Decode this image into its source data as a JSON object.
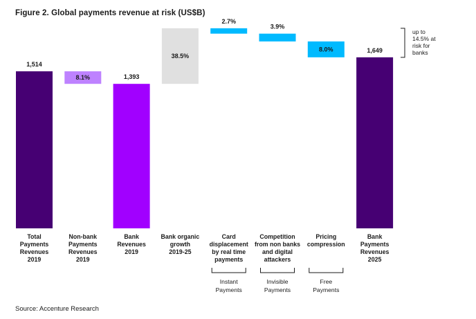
{
  "title": "Figure 2. Global payments revenue at risk (US$B)",
  "source": "Source: Accenture Research",
  "chart_data": {
    "type": "bar",
    "subtype": "waterfall",
    "categories": [
      "Total Payments Revenues 2019",
      "Non-bank Payments Revenues 2019",
      "Bank Revenues 2019",
      "Bank organic growth 2019-25",
      "Card displacement by real time payments",
      "Competition from non banks and digital attackers",
      "Pricing compression",
      "Bank Payments Revenues 2025"
    ],
    "category_lines": [
      [
        "Total",
        "Payments",
        "Revenues",
        "2019"
      ],
      [
        "Non-bank",
        "Payments",
        "Revenues",
        "2019"
      ],
      [
        "Bank",
        "Revenues",
        "2019"
      ],
      [
        "Bank organic",
        "growth",
        "2019-25"
      ],
      [
        "Card",
        "displacement",
        "by real time",
        "payments"
      ],
      [
        "Competition",
        "from non banks",
        "and digital",
        "attackers"
      ],
      [
        "Pricing",
        "compression"
      ],
      [
        "Bank",
        "Payments",
        "Revenues",
        "2025"
      ]
    ],
    "bars": [
      {
        "kind": "total",
        "start": 0,
        "end": 1514,
        "label": "1,514",
        "color": "#460073"
      },
      {
        "kind": "decrease",
        "start": 1393,
        "end": 1514,
        "label": "8.1%",
        "color": "#be82ff"
      },
      {
        "kind": "total",
        "start": 0,
        "end": 1393,
        "label": "1,393",
        "color": "#a100ff"
      },
      {
        "kind": "increase",
        "start": 1393,
        "end": 1929,
        "label": "38.5%",
        "color": "#e0e0e0"
      },
      {
        "kind": "decrease",
        "start": 1877,
        "end": 1929,
        "label": "2.7%",
        "color": "#00baff"
      },
      {
        "kind": "decrease",
        "start": 1802,
        "end": 1877,
        "label": "3.9%",
        "color": "#00baff"
      },
      {
        "kind": "decrease",
        "start": 1649,
        "end": 1802,
        "label": "8.0%",
        "color": "#00baff"
      },
      {
        "kind": "total",
        "start": 0,
        "end": 1649,
        "label": "1,649",
        "color": "#460073"
      }
    ],
    "ylim": [
      0,
      2000
    ],
    "grid": false,
    "brackets": [
      {
        "label_lines": [
          "Instant",
          "Payments"
        ],
        "index": 4
      },
      {
        "label_lines": [
          "Invisible",
          "Payments"
        ],
        "index": 5
      },
      {
        "label_lines": [
          "Free",
          "Payments"
        ],
        "index": 6
      }
    ],
    "annotation": {
      "lines": [
        "up to",
        "14.5% at",
        "risk for",
        "banks"
      ],
      "spans": [
        4,
        6
      ]
    }
  }
}
